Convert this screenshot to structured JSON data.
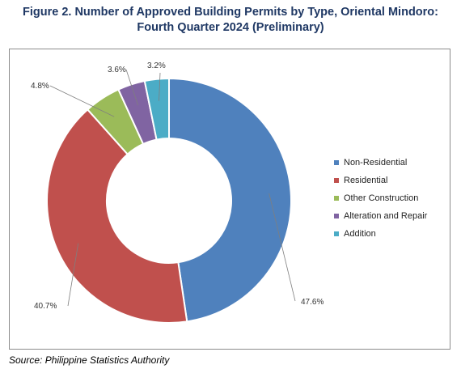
{
  "title_line1": "Figure 2. Number of Approved Building Permits by Type, Oriental Mindoro:",
  "title_line2": "Fourth Quarter 2024 (Preliminary)",
  "source": "Source: Philippine Statistics Authority",
  "chart_data": {
    "type": "pie",
    "variant": "donut",
    "categories": [
      "Non-Residential",
      "Residential",
      "Other Construction",
      "Alteration and Repair",
      "Addition"
    ],
    "values": [
      47.6,
      40.7,
      4.8,
      3.6,
      3.2
    ],
    "value_labels": [
      "47.6%",
      "40.7%",
      "4.8%",
      "3.6%",
      "3.2%"
    ],
    "colors": [
      "#4f81bd",
      "#c0504d",
      "#9bbb59",
      "#8064a2",
      "#4bacc6"
    ],
    "legend_position": "right"
  }
}
